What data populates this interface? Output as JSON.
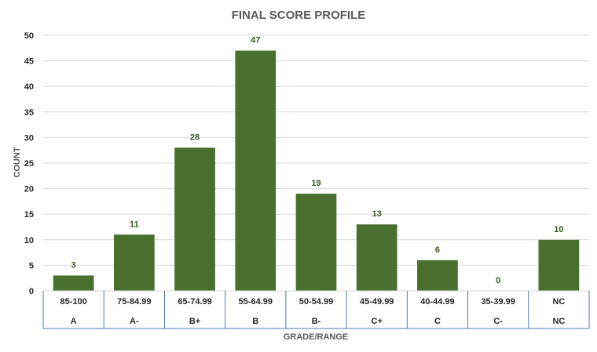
{
  "chart_data": {
    "type": "bar",
    "title": "FINAL SCORE PROFILE",
    "ylabel": "COUNT",
    "xlabel": "GRADE/RANGE",
    "ylim": [
      0,
      50
    ],
    "yticks": [
      0,
      5,
      10,
      15,
      20,
      25,
      30,
      35,
      40,
      45,
      50
    ],
    "categories": [
      {
        "range": "85-100",
        "grade": "A"
      },
      {
        "range": "75-84.99",
        "grade": "A-"
      },
      {
        "range": "65-74.99",
        "grade": "B+"
      },
      {
        "range": "55-64.99",
        "grade": "B"
      },
      {
        "range": "50-54.99",
        "grade": "B-"
      },
      {
        "range": "45-49.99",
        "grade": "C+"
      },
      {
        "range": "40-44.99",
        "grade": "C"
      },
      {
        "range": "35-39.99",
        "grade": "C-"
      },
      {
        "range": "NC",
        "grade": "NC"
      }
    ],
    "values": [
      3,
      11,
      28,
      47,
      19,
      13,
      6,
      0,
      10
    ],
    "grid": true,
    "legend": "none",
    "colors": {
      "bar": "#4a702f",
      "label": "#385723",
      "grid": "#d9d9d9",
      "table_border": "#4a7ab5",
      "title": "#595959"
    }
  }
}
